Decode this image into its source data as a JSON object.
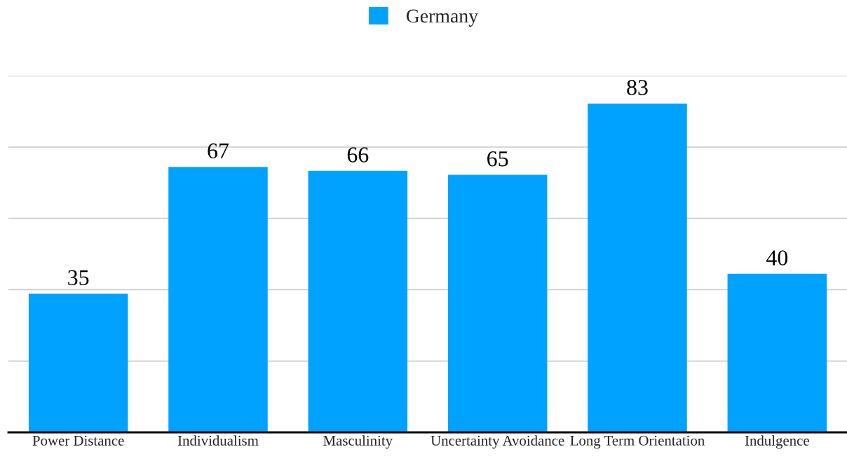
{
  "chart_data": {
    "type": "bar",
    "categories": [
      "Power Distance",
      "Individualism",
      "Masculinity",
      "Uncertainty Avoidance",
      "Long Term Orientation",
      "Indulgence"
    ],
    "series": [
      {
        "name": "Germany",
        "color": "#00a2ff",
        "values": [
          35,
          67,
          66,
          65,
          83,
          40
        ]
      }
    ],
    "ylim": [
      0,
      90
    ],
    "yticks": [
      {
        "value": 0,
        "label": null
      },
      {
        "value": 18,
        "label": null
      },
      {
        "value": 36,
        "label": null
      },
      {
        "value": 54,
        "label": null
      },
      {
        "value": 72,
        "label": null
      },
      {
        "value": 90,
        "label": null
      }
    ],
    "grid": "y",
    "legend": "top",
    "data_labels": true,
    "tick_labels": "x"
  }
}
